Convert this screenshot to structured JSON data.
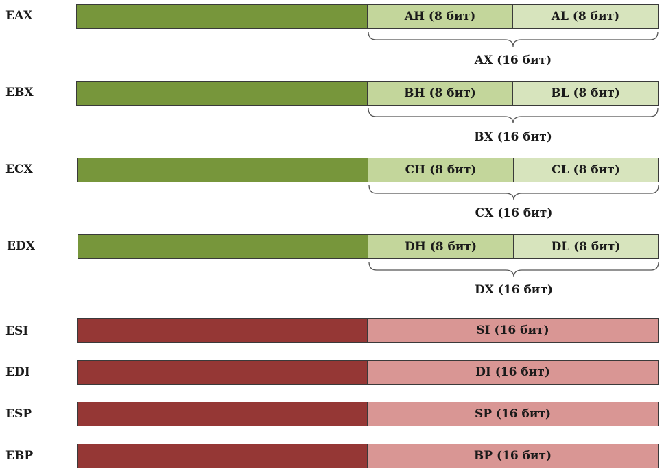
{
  "general_registers": [
    {
      "name": "EAX",
      "high": "AH (8 бит)",
      "low": "AL (8 бит)",
      "word": "AX (16 бит)"
    },
    {
      "name": "EBX",
      "high": "BH (8 бит)",
      "low": "BL (8 бит)",
      "word": "BX (16 бит)"
    },
    {
      "name": "ECX",
      "high": "CH (8 бит)",
      "low": "CL (8 бит)",
      "word": "CX (16 бит)"
    },
    {
      "name": "EDX",
      "high": "DH (8 бит)",
      "low": "DL (8 бит)",
      "word": "DX (16 бит)"
    }
  ],
  "index_pointer_registers": [
    {
      "name": "ESI",
      "word": "SI (16 бит)"
    },
    {
      "name": "EDI",
      "word": "DI (16 бит)"
    },
    {
      "name": "ESP",
      "word": "SP (16 бит)"
    },
    {
      "name": "EBP",
      "word": "BP (16 бит)"
    }
  ],
  "colors": {
    "general_upper": "#77963b",
    "general_high_byte": "#c3d69b",
    "general_low_byte": "#d7e4bd",
    "pointer_upper": "#953735",
    "pointer_low_word": "#d99694"
  }
}
